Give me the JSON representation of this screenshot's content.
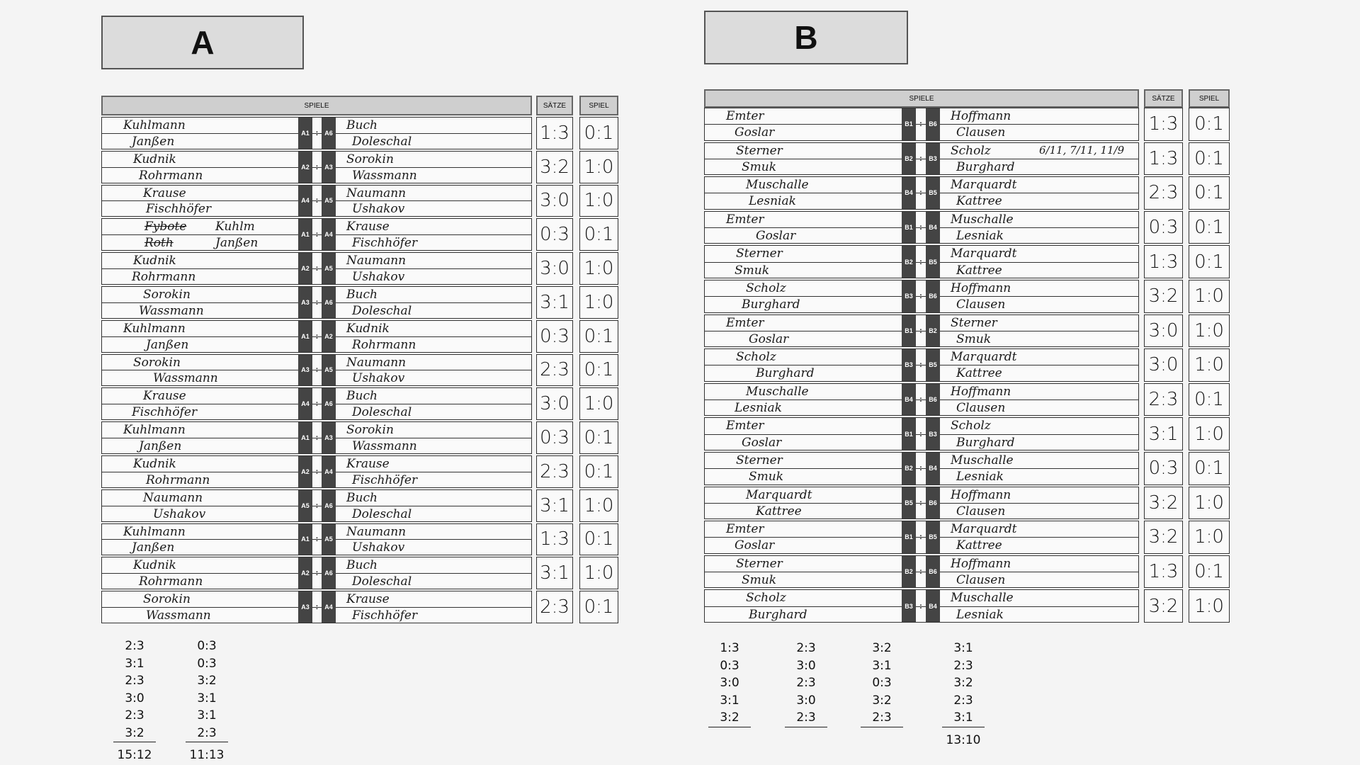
{
  "sheets": [
    {
      "title": "A",
      "header": {
        "spiele": "SPIELE",
        "saetze": "SÄTZE",
        "spiel": "SPIEL"
      },
      "rows": [
        {
          "left": [
            "Kuhlmann",
            "Janßen"
          ],
          "codes": [
            "A1",
            "A6"
          ],
          "right": [
            "Buch",
            "Doleschal"
          ],
          "saetze": "1:3",
          "spiel": "0:1"
        },
        {
          "left": [
            "Kudnik",
            "Rohrmann"
          ],
          "codes": [
            "A2",
            "A3"
          ],
          "right": [
            "Sorokin",
            "Wassmann"
          ],
          "saetze": "3:2",
          "spiel": "1:0"
        },
        {
          "left": [
            "Krause",
            "Fischhöfer"
          ],
          "codes": [
            "A4",
            "A5"
          ],
          "right": [
            "Naumann",
            "Ushakov"
          ],
          "saetze": "3:0",
          "spiel": "1:0"
        },
        {
          "left": [
            "Kuhlm",
            "Janßen"
          ],
          "struck": [
            "Fybote",
            "Roth"
          ],
          "codes": [
            "A1",
            "A4"
          ],
          "right": [
            "Krause",
            "Fischhöfer"
          ],
          "saetze": "0:3",
          "spiel": "0:1"
        },
        {
          "left": [
            "Kudnik",
            "Rohrmann"
          ],
          "codes": [
            "A2",
            "A5"
          ],
          "right": [
            "Naumann",
            "Ushakov"
          ],
          "saetze": "3:0",
          "spiel": "1:0"
        },
        {
          "left": [
            "Sorokin",
            "Wassmann"
          ],
          "codes": [
            "A3",
            "A6"
          ],
          "right": [
            "Buch",
            "Doleschal"
          ],
          "saetze": "3:1",
          "spiel": "1:0"
        },
        {
          "left": [
            "Kuhlmann",
            "Janßen"
          ],
          "codes": [
            "A1",
            "A2"
          ],
          "right": [
            "Kudnik",
            "Rohrmann"
          ],
          "saetze": "0:3",
          "spiel": "0:1"
        },
        {
          "left": [
            "Sorokin",
            "Wassmann"
          ],
          "codes": [
            "A3",
            "A5"
          ],
          "right": [
            "Naumann",
            "Ushakov"
          ],
          "saetze": "2:3",
          "spiel": "0:1"
        },
        {
          "left": [
            "Krause",
            "Fischhöfer"
          ],
          "codes": [
            "A4",
            "A6"
          ],
          "right": [
            "Buch",
            "Doleschal"
          ],
          "saetze": "3:0",
          "spiel": "1:0"
        },
        {
          "left": [
            "Kuhlmann",
            "Janßen"
          ],
          "codes": [
            "A1",
            "A3"
          ],
          "right": [
            "Sorokin",
            "Wassmann"
          ],
          "saetze": "0:3",
          "spiel": "0:1"
        },
        {
          "left": [
            "Kudnik",
            "Rohrmann"
          ],
          "codes": [
            "A2",
            "A4"
          ],
          "right": [
            "Krause",
            "Fischhöfer"
          ],
          "saetze": "2:3",
          "spiel": "0:1"
        },
        {
          "left": [
            "Naumann",
            "Ushakov"
          ],
          "codes": [
            "A5",
            "A6"
          ],
          "right": [
            "Buch",
            "Doleschal"
          ],
          "saetze": "3:1",
          "spiel": "1:0"
        },
        {
          "left": [
            "Kuhlmann",
            "Janßen"
          ],
          "codes": [
            "A1",
            "A5"
          ],
          "right": [
            "Naumann",
            "Ushakov"
          ],
          "saetze": "1:3",
          "spiel": "0:1"
        },
        {
          "left": [
            "Kudnik",
            "Rohrmann"
          ],
          "codes": [
            "A2",
            "A6"
          ],
          "right": [
            "Buch",
            "Doleschal"
          ],
          "saetze": "3:1",
          "spiel": "1:0"
        },
        {
          "left": [
            "Sorokin",
            "Wassmann"
          ],
          "codes": [
            "A3",
            "A4"
          ],
          "right": [
            "Krause",
            "Fischhöfer"
          ],
          "saetze": "2:3",
          "spiel": "0:1"
        }
      ],
      "tallies": [
        {
          "scores": [
            "2:3",
            "3:1",
            "2:3",
            "3:0",
            "2:3",
            "3:2"
          ],
          "total": "15:12"
        },
        {
          "scores": [
            "0:3",
            "0:3",
            "3:2",
            "3:1",
            "3:1",
            "2:3"
          ],
          "total": "11:13"
        }
      ]
    },
    {
      "title": "B",
      "header": {
        "spiele": "SPIELE",
        "saetze": "SÄTZE",
        "spiel": "SPIEL"
      },
      "rows": [
        {
          "left": [
            "Emter",
            "Goslar"
          ],
          "codes": [
            "B1",
            "B6"
          ],
          "right": [
            "Hoffmann",
            "Clausen"
          ],
          "saetze": "1:3",
          "spiel": "0:1"
        },
        {
          "left": [
            "Sterner",
            "Smuk"
          ],
          "codes": [
            "B2",
            "B3"
          ],
          "right": [
            "Scholz",
            "Burghard"
          ],
          "note": "6/11, 7/11, 11/9",
          "saetze": "1:3",
          "spiel": "0:1"
        },
        {
          "left": [
            "Muschalle",
            "Lesniak"
          ],
          "codes": [
            "B4",
            "B5"
          ],
          "right": [
            "Marquardt",
            "Kattree"
          ],
          "saetze": "2:3",
          "spiel": "0:1"
        },
        {
          "left": [
            "Emter",
            "Goslar"
          ],
          "codes": [
            "B1",
            "B4"
          ],
          "right": [
            "Muschalle",
            "Lesniak"
          ],
          "saetze": "0:3",
          "spiel": "0:1"
        },
        {
          "left": [
            "Sterner",
            "Smuk"
          ],
          "codes": [
            "B2",
            "B5"
          ],
          "right": [
            "Marquardt",
            "Kattree"
          ],
          "saetze": "1:3",
          "spiel": "0:1"
        },
        {
          "left": [
            "Scholz",
            "Burghard"
          ],
          "codes": [
            "B3",
            "B6"
          ],
          "right": [
            "Hoffmann",
            "Clausen"
          ],
          "saetze": "3:2",
          "spiel": "1:0"
        },
        {
          "left": [
            "Emter",
            "Goslar"
          ],
          "codes": [
            "B1",
            "B2"
          ],
          "right": [
            "Sterner",
            "Smuk"
          ],
          "saetze": "3:0",
          "spiel": "1:0"
        },
        {
          "left": [
            "Scholz",
            "Burghard"
          ],
          "codes": [
            "B3",
            "B5"
          ],
          "right": [
            "Marquardt",
            "Kattree"
          ],
          "saetze": "3:0",
          "spiel": "1:0"
        },
        {
          "left": [
            "Muschalle",
            "Lesniak"
          ],
          "codes": [
            "B4",
            "B6"
          ],
          "right": [
            "Hoffmann",
            "Clausen"
          ],
          "saetze": "2:3",
          "spiel": "0:1"
        },
        {
          "left": [
            "Emter",
            "Goslar"
          ],
          "codes": [
            "B1",
            "B3"
          ],
          "right": [
            "Scholz",
            "Burghard"
          ],
          "saetze": "3:1",
          "spiel": "1:0"
        },
        {
          "left": [
            "Sterner",
            "Smuk"
          ],
          "codes": [
            "B2",
            "B4"
          ],
          "right": [
            "Muschalle",
            "Lesniak"
          ],
          "saetze": "0:3",
          "spiel": "0:1"
        },
        {
          "left": [
            "Marquardt",
            "Kattree"
          ],
          "codes": [
            "B5",
            "B6"
          ],
          "right": [
            "Hoffmann",
            "Clausen"
          ],
          "saetze": "3:2",
          "spiel": "1:0"
        },
        {
          "left": [
            "Emter",
            "Goslar"
          ],
          "codes": [
            "B1",
            "B5"
          ],
          "right": [
            "Marquardt",
            "Kattree"
          ],
          "saetze": "3:2",
          "spiel": "1:0"
        },
        {
          "left": [
            "Sterner",
            "Smuk"
          ],
          "codes": [
            "B2",
            "B6"
          ],
          "right": [
            "Hoffmann",
            "Clausen"
          ],
          "saetze": "1:3",
          "spiel": "0:1"
        },
        {
          "left": [
            "Scholz",
            "Burghard"
          ],
          "codes": [
            "B3",
            "B4"
          ],
          "right": [
            "Muschalle",
            "Lesniak"
          ],
          "saetze": "3:2",
          "spiel": "1:0"
        }
      ],
      "tallies": [
        {
          "scores": [
            "1:3",
            "0:3",
            "3:0",
            "3:1",
            "3:2"
          ]
        },
        {
          "scores": [
            "2:3",
            "3:0",
            "2:3",
            "3:0",
            "2:3"
          ]
        },
        {
          "scores": [
            "3:2",
            "3:1",
            "0:3",
            "3:2",
            "2:3"
          ]
        },
        {
          "scores": [
            "3:1",
            "2:3",
            "3:2",
            "2:3",
            "3:1"
          ],
          "total": "13:10"
        }
      ]
    }
  ]
}
